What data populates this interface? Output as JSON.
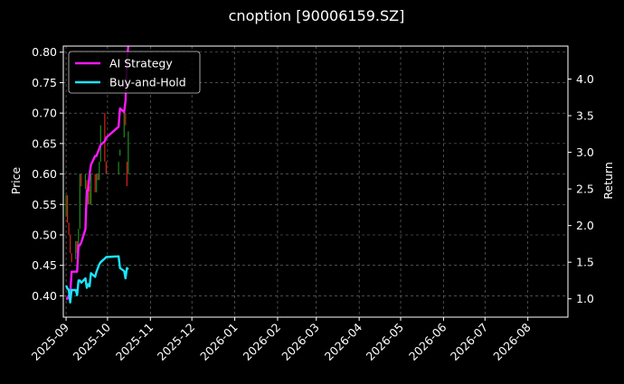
{
  "chart_data": {
    "type": "line",
    "title": "cnoption [90006159.SZ]",
    "xlabel": "",
    "ylabel": "Price",
    "y2label": "Return",
    "background": "#000000",
    "grid": true,
    "legend_position": "top-left",
    "xlim": [
      "2025-08-30",
      "2026-08-30"
    ],
    "ylim": [
      0.365,
      0.81
    ],
    "y2lim": [
      0.75,
      4.45
    ],
    "x_ticks": [
      "2025-09",
      "2025-10",
      "2025-11",
      "2025-12",
      "2026-01",
      "2026-02",
      "2026-03",
      "2026-04",
      "2026-05",
      "2026-06",
      "2026-07",
      "2026-08"
    ],
    "y_ticks": [
      "0.40",
      "0.45",
      "0.50",
      "0.55",
      "0.60",
      "0.65",
      "0.70",
      "0.75",
      "0.80"
    ],
    "y2_ticks": [
      "1.0",
      "1.5",
      "2.0",
      "2.5",
      "3.0",
      "3.5",
      "4.0"
    ],
    "candles": {
      "up_color": "#1e8c1e",
      "down_color": "#d62418",
      "data": [
        {
          "date": "2025-09-01",
          "open": 0.53,
          "close": 0.565
        },
        {
          "date": "2025-09-02",
          "open": 0.565,
          "close": 0.52
        },
        {
          "date": "2025-09-03",
          "open": 0.52,
          "close": 0.5
        },
        {
          "date": "2025-09-04",
          "open": 0.5,
          "close": 0.47
        },
        {
          "date": "2025-09-05",
          "open": 0.47,
          "close": 0.455
        },
        {
          "date": "2025-09-08",
          "open": 0.46,
          "close": 0.49
        },
        {
          "date": "2025-09-09",
          "open": 0.49,
          "close": 0.47
        },
        {
          "date": "2025-09-10",
          "open": 0.47,
          "close": 0.51
        },
        {
          "date": "2025-09-11",
          "open": 0.51,
          "close": 0.6
        },
        {
          "date": "2025-09-12",
          "open": 0.6,
          "close": 0.58
        },
        {
          "date": "2025-09-15",
          "open": 0.575,
          "close": 0.6
        },
        {
          "date": "2025-09-16",
          "open": 0.59,
          "close": 0.55
        },
        {
          "date": "2025-09-17",
          "open": 0.55,
          "close": 0.58
        },
        {
          "date": "2025-09-18",
          "open": 0.58,
          "close": 0.55
        },
        {
          "date": "2025-09-19",
          "open": 0.55,
          "close": 0.6
        },
        {
          "date": "2025-09-22",
          "open": 0.6,
          "close": 0.57
        },
        {
          "date": "2025-09-23",
          "open": 0.57,
          "close": 0.6
        },
        {
          "date": "2025-09-24",
          "open": 0.6,
          "close": 0.59
        },
        {
          "date": "2025-09-25",
          "open": 0.59,
          "close": 0.62
        },
        {
          "date": "2025-09-26",
          "open": 0.62,
          "close": 0.68
        },
        {
          "date": "2025-09-29",
          "open": 0.7,
          "close": 0.62
        },
        {
          "date": "2025-09-30",
          "open": 0.62,
          "close": 0.6
        },
        {
          "date": "2025-10-09",
          "open": 0.6,
          "close": 0.62
        },
        {
          "date": "2025-10-10",
          "open": 0.63,
          "close": 0.64
        },
        {
          "date": "2025-10-13",
          "open": 0.66,
          "close": 0.7
        },
        {
          "date": "2025-10-14",
          "open": 0.7,
          "close": 0.68
        },
        {
          "date": "2025-10-15",
          "open": 0.62,
          "close": 0.58
        },
        {
          "date": "2025-10-16",
          "open": 0.6,
          "close": 0.67
        }
      ]
    },
    "series": [
      {
        "name": "AI Strategy",
        "axis": "right",
        "color": "#ff19ff",
        "x": [
          "2025-09-01",
          "2025-09-02",
          "2025-09-03",
          "2025-09-04",
          "2025-09-05",
          "2025-09-08",
          "2025-09-09",
          "2025-09-10",
          "2025-09-11",
          "2025-09-12",
          "2025-09-15",
          "2025-09-16",
          "2025-09-17",
          "2025-09-18",
          "2025-09-19",
          "2025-09-22",
          "2025-09-23",
          "2025-09-24",
          "2025-09-25",
          "2025-09-26",
          "2025-09-29",
          "2025-09-30",
          "2025-10-09",
          "2025-10-10",
          "2025-10-13",
          "2025-10-14",
          "2025-10-15",
          "2025-10-16"
        ],
        "values": [
          1.0,
          1.0,
          1.05,
          1.05,
          1.37,
          1.37,
          1.37,
          1.73,
          1.73,
          1.77,
          1.95,
          2.48,
          2.48,
          2.7,
          2.83,
          2.95,
          2.95,
          3.0,
          3.05,
          3.1,
          3.15,
          3.2,
          3.35,
          3.6,
          3.55,
          3.7,
          4.25,
          4.45
        ]
      },
      {
        "name": "Buy-and-Hold",
        "axis": "right",
        "color": "#19e6ff",
        "x": [
          "2025-09-01",
          "2025-09-02",
          "2025-09-03",
          "2025-09-04",
          "2025-09-05",
          "2025-09-08",
          "2025-09-09",
          "2025-09-10",
          "2025-09-11",
          "2025-09-12",
          "2025-09-15",
          "2025-09-16",
          "2025-09-17",
          "2025-09-18",
          "2025-09-19",
          "2025-09-22",
          "2025-09-23",
          "2025-09-24",
          "2025-09-25",
          "2025-09-26",
          "2025-09-29",
          "2025-09-30",
          "2025-10-09",
          "2025-10-10",
          "2025-10-13",
          "2025-10-14",
          "2025-10-15",
          "2025-10-16"
        ],
        "values": [
          1.18,
          1.14,
          1.12,
          0.95,
          1.12,
          1.12,
          1.05,
          1.25,
          1.25,
          1.22,
          1.28,
          1.15,
          1.2,
          1.17,
          1.35,
          1.3,
          1.37,
          1.42,
          1.47,
          1.5,
          1.55,
          1.57,
          1.58,
          1.42,
          1.38,
          1.28,
          1.42,
          1.4
        ]
      }
    ]
  }
}
